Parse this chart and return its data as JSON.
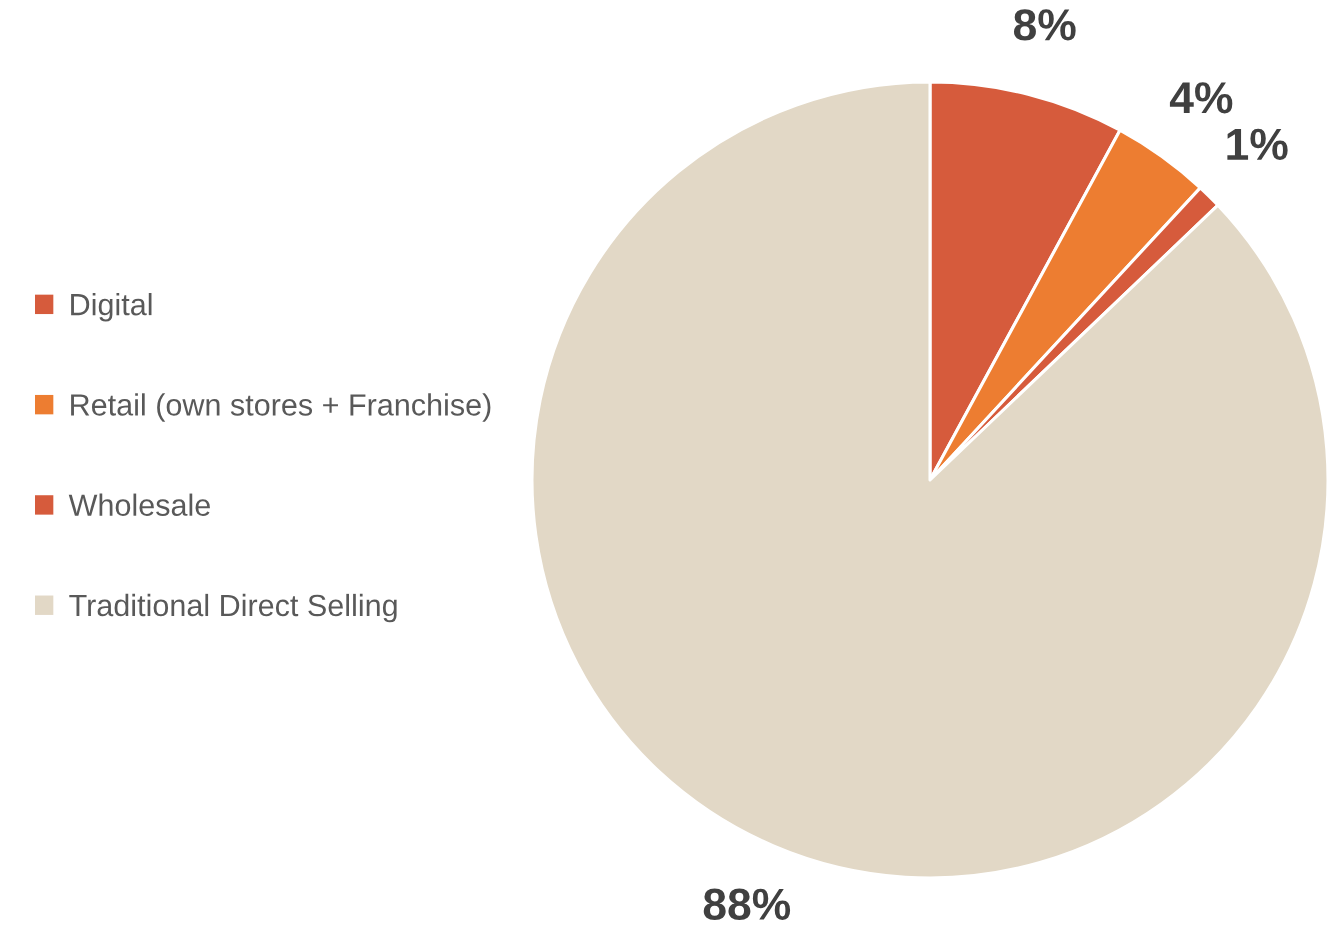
{
  "chart_data": {
    "type": "pie",
    "categories": [
      "Digital",
      "Retail (own stores + Franchise)",
      "Wholesale",
      "Traditional Direct Selling"
    ],
    "values": [
      8,
      4,
      1,
      88
    ],
    "value_labels": [
      "8%",
      "4%",
      "1%",
      "88%"
    ],
    "colors": [
      "#d65b3c",
      "#ed7d31",
      "#d65b3c",
      "#e2d8c6"
    ],
    "legend": "left"
  }
}
